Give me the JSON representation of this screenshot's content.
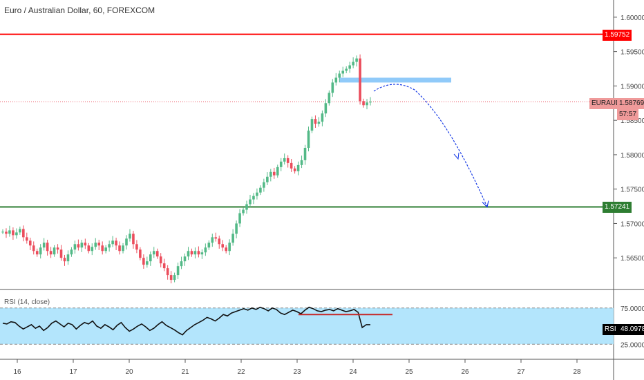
{
  "header": {
    "title": "Euro / Australian Dollar, 60, FOREXCOM"
  },
  "rsi": {
    "label": "RSI (14, close)",
    "value_label": "RSI",
    "value": "48.0978",
    "levels": [
      "75.0000",
      "25.0000"
    ]
  },
  "tags": {
    "resistance": "1.59752",
    "support": "1.57241",
    "symbol": "EURAUD",
    "last_price": "1.58769",
    "countdown": "57:57"
  },
  "colors": {
    "bull": "#53b987",
    "bear": "#eb4d5c",
    "resistance": "#ff0000",
    "support": "#2e7d32",
    "zone": "#90caf9",
    "rsi_bg": "#b3e5fc",
    "arrow": "#1a3de6"
  },
  "chart_data": {
    "type": "candlestick",
    "title": "Euro / Australian Dollar, 60, FOREXCOM",
    "y_ticks": [
      "1.60000",
      "1.59500",
      "1.59000",
      "1.58500",
      "1.58000",
      "1.57500",
      "1.57000",
      "1.56500"
    ],
    "x_ticks": [
      "16",
      "17",
      "20",
      "21",
      "22",
      "23",
      "24",
      "25",
      "26",
      "27",
      "28"
    ],
    "ylim": [
      1.5605,
      1.6025
    ],
    "horizontal_lines": [
      {
        "name": "resistance",
        "value": 1.59752
      },
      {
        "name": "support",
        "value": 1.57241
      },
      {
        "name": "last",
        "value": 1.58769
      }
    ],
    "supply_zone": {
      "from": 1.5905,
      "to": 1.5912,
      "x_from": "23",
      "x_to": "24"
    },
    "projection": {
      "from": 1.5895,
      "to": 1.5724
    },
    "close_path": [
      [
        1.5688,
        1.5685,
        1.569,
        1.5683,
        1.5687,
        1.5692,
        1.568,
        1.5675
      ],
      [
        1.5668,
        1.566,
        1.5655,
        1.5665,
        1.5672,
        1.566,
        1.5655,
        1.5665
      ],
      [
        1.5662,
        1.565,
        1.5645,
        1.5655,
        1.5662,
        1.567,
        1.5665,
        1.5672
      ],
      [
        1.5668,
        1.566,
        1.5666,
        1.5672,
        1.5668,
        1.566,
        1.5665,
        1.567
      ],
      [
        1.5675,
        1.5668,
        1.566,
        1.5668,
        1.5678,
        1.5685,
        1.567,
        1.5662
      ],
      [
        1.565,
        1.564,
        1.5645,
        1.5655,
        1.566,
        1.5652,
        1.5642,
        1.5635
      ],
      [
        1.5625,
        1.5618,
        1.5625,
        1.5638,
        1.5645,
        1.5652,
        1.566,
        1.5655
      ],
      [
        1.566,
        1.5655,
        1.5658,
        1.5665,
        1.5672,
        1.568,
        1.5678,
        1.567
      ],
      [
        1.5665,
        1.566,
        1.5672,
        1.5685,
        1.57,
        1.5715,
        1.572,
        1.5728
      ],
      [
        1.5735,
        1.574,
        1.5745,
        1.5752,
        1.576,
        1.5768,
        1.5775,
        1.577
      ],
      [
        1.5782,
        1.579,
        1.5795,
        1.5788,
        1.578,
        1.5776,
        1.5785,
        1.5792
      ],
      [
        1.581,
        1.5835,
        1.5852,
        1.5845,
        1.5848,
        1.586,
        1.5875,
        1.589
      ],
      [
        1.5905,
        1.5912,
        1.5918,
        1.5922,
        1.5925,
        1.593,
        1.5935,
        1.594
      ],
      [
        1.5878,
        1.5872,
        1.5876,
        1.5877
      ]
    ],
    "rsi_path": [
      54,
      53,
      56,
      55,
      50,
      46,
      49,
      52,
      47,
      50,
      44,
      48,
      54,
      57,
      53,
      49,
      54,
      52,
      46,
      51,
      55,
      53,
      57,
      50,
      47,
      52,
      49,
      45,
      51,
      55,
      48,
      43,
      46,
      50,
      53,
      49,
      44,
      47,
      52,
      56,
      51,
      48,
      45,
      41,
      38,
      44,
      48,
      52,
      55,
      58,
      62,
      60,
      57,
      61,
      66,
      64,
      68,
      70,
      72,
      74,
      72,
      75,
      73,
      76,
      74,
      71,
      75,
      73,
      68,
      66,
      69,
      72,
      70,
      67,
      72,
      76,
      74,
      71,
      70,
      72,
      73,
      71,
      74,
      72,
      70,
      71,
      73,
      69,
      48,
      52,
      52
    ]
  }
}
